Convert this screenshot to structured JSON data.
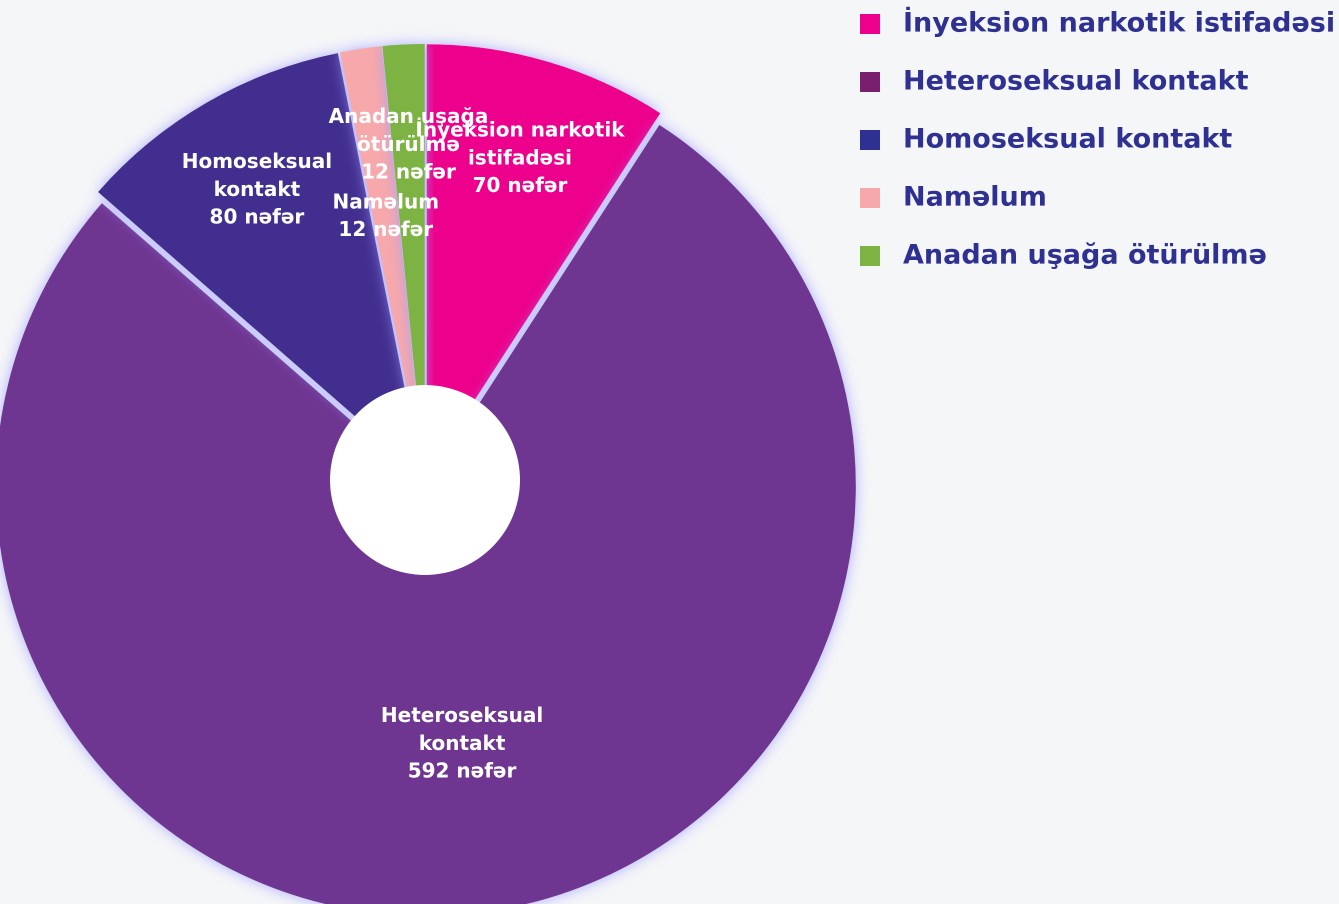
{
  "chart_data": {
    "type": "pie",
    "categories": [
      "İnyeksion narkotik istifadəsi",
      "Heteroseksual kontakt",
      "Homoseksual kontakt",
      "Naməlum",
      "Anadan uşağa ötürülmə"
    ],
    "values": [
      70,
      592,
      80,
      12,
      12
    ],
    "value_labels": [
      "70 nəfər",
      "592 nəfər",
      "80 nəfər",
      "12 nəfər",
      "12 nəfər"
    ],
    "colors": [
      "#ec008c",
      "#6e3591",
      "#432d8f",
      "#f7a8ab",
      "#7cb342"
    ],
    "legend_colors": [
      "#ec008c",
      "#7a1f6e",
      "#2e3192",
      "#f7a8ab",
      "#7cb342"
    ],
    "legend": "top-right"
  }
}
